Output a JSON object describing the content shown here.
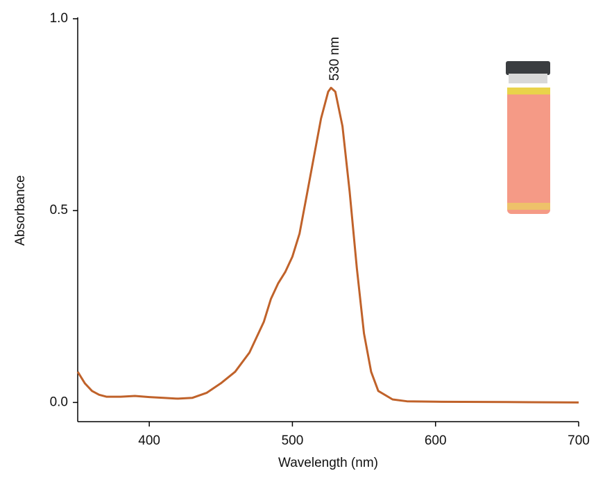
{
  "chart_data": {
    "type": "line",
    "x_label": "Wavelength (nm)",
    "y_label": "Absorbance",
    "annotation": "530 nm",
    "x": [
      350,
      355,
      360,
      365,
      370,
      380,
      390,
      400,
      410,
      420,
      430,
      440,
      450,
      460,
      470,
      480,
      485,
      490,
      495,
      500,
      505,
      510,
      515,
      520,
      525,
      527,
      530,
      535,
      540,
      545,
      550,
      555,
      560,
      570,
      580,
      600,
      650,
      700
    ],
    "series": [
      {
        "color": "#c0622a",
        "values": [
          0.08,
          0.05,
          0.03,
          0.02,
          0.015,
          0.015,
          0.017,
          0.014,
          0.012,
          0.01,
          0.012,
          0.025,
          0.05,
          0.08,
          0.13,
          0.21,
          0.27,
          0.31,
          0.34,
          0.38,
          0.44,
          0.54,
          0.64,
          0.74,
          0.81,
          0.82,
          0.81,
          0.72,
          0.55,
          0.35,
          0.18,
          0.08,
          0.03,
          0.008,
          0.003,
          0.002,
          0.001,
          0.0
        ]
      }
    ],
    "xlim": [
      350,
      700
    ],
    "ylim": [
      -0.05,
      1.0
    ],
    "xticks": [
      400,
      500,
      600,
      700
    ],
    "yticks": [
      {
        "value": 0,
        "label": "0.0"
      },
      0.5,
      {
        "value": 1,
        "label": "1.0"
      }
    ]
  }
}
